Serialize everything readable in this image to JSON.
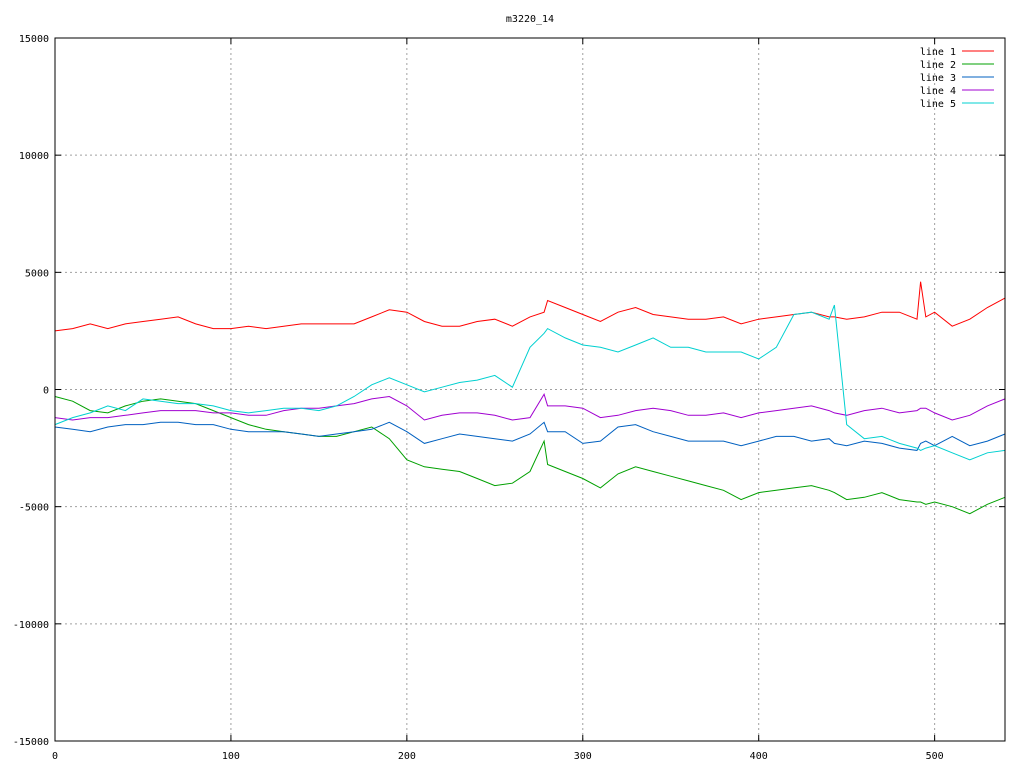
{
  "chart_data": {
    "type": "line",
    "title": "m3220_14",
    "xlabel": "",
    "ylabel": "",
    "xlim": [
      0,
      540
    ],
    "ylim": [
      -15000,
      15000
    ],
    "x_ticks": [
      0,
      100,
      200,
      300,
      400,
      500
    ],
    "y_ticks": [
      -15000,
      -10000,
      -5000,
      0,
      5000,
      10000,
      15000
    ],
    "grid": true,
    "legend_position": "top-right",
    "x": [
      0,
      10,
      20,
      30,
      40,
      50,
      60,
      70,
      80,
      90,
      100,
      110,
      120,
      130,
      140,
      150,
      160,
      170,
      180,
      190,
      200,
      210,
      220,
      230,
      240,
      250,
      260,
      270,
      278,
      280,
      290,
      300,
      310,
      320,
      330,
      340,
      350,
      360,
      370,
      380,
      390,
      400,
      410,
      420,
      430,
      440,
      443,
      450,
      460,
      470,
      480,
      490,
      492,
      495,
      500,
      510,
      520,
      530,
      540
    ],
    "series": [
      {
        "name": "line 1",
        "color": "#ff0000",
        "values": [
          2500,
          2600,
          2800,
          2600,
          2800,
          2900,
          3000,
          3100,
          2800,
          2600,
          2600,
          2700,
          2600,
          2700,
          2800,
          2800,
          2800,
          2800,
          3100,
          3400,
          3300,
          2900,
          2700,
          2700,
          2900,
          3000,
          2700,
          3100,
          3300,
          3800,
          3500,
          3200,
          2900,
          3300,
          3500,
          3200,
          3100,
          3000,
          3000,
          3100,
          2800,
          3000,
          3100,
          3200,
          3300,
          3100,
          3100,
          3000,
          3100,
          3300,
          3300,
          3000,
          4600,
          3100,
          3300,
          2700,
          3000,
          3500,
          3900
        ]
      },
      {
        "name": "line 2",
        "color": "#00a000",
        "values": [
          -300,
          -500,
          -900,
          -1000,
          -700,
          -500,
          -400,
          -500,
          -600,
          -900,
          -1200,
          -1500,
          -1700,
          -1800,
          -1900,
          -2000,
          -2000,
          -1800,
          -1600,
          -2100,
          -3000,
          -3300,
          -3400,
          -3500,
          -3800,
          -4100,
          -4000,
          -3500,
          -2200,
          -3200,
          -3500,
          -3800,
          -4200,
          -3600,
          -3300,
          -3500,
          -3700,
          -3900,
          -4100,
          -4300,
          -4700,
          -4400,
          -4300,
          -4200,
          -4100,
          -4300,
          -4400,
          -4700,
          -4600,
          -4400,
          -4700,
          -4800,
          -4800,
          -4900,
          -4800,
          -5000,
          -5300,
          -4900,
          -4600
        ]
      },
      {
        "name": "line 3",
        "color": "#0060c0",
        "values": [
          -1600,
          -1700,
          -1800,
          -1600,
          -1500,
          -1500,
          -1400,
          -1400,
          -1500,
          -1500,
          -1700,
          -1800,
          -1800,
          -1800,
          -1900,
          -2000,
          -1900,
          -1800,
          -1700,
          -1400,
          -1800,
          -2300,
          -2100,
          -1900,
          -2000,
          -2100,
          -2200,
          -1900,
          -1400,
          -1800,
          -1800,
          -2300,
          -2200,
          -1600,
          -1500,
          -1800,
          -2000,
          -2200,
          -2200,
          -2200,
          -2400,
          -2200,
          -2000,
          -2000,
          -2200,
          -2100,
          -2300,
          -2400,
          -2200,
          -2300,
          -2500,
          -2600,
          -2300,
          -2200,
          -2400,
          -2000,
          -2400,
          -2200,
          -1900
        ]
      },
      {
        "name": "line 4",
        "color": "#a000d0",
        "values": [
          -1200,
          -1300,
          -1200,
          -1200,
          -1100,
          -1000,
          -900,
          -900,
          -900,
          -1000,
          -1000,
          -1100,
          -1100,
          -900,
          -800,
          -800,
          -700,
          -600,
          -400,
          -300,
          -700,
          -1300,
          -1100,
          -1000,
          -1000,
          -1100,
          -1300,
          -1200,
          -200,
          -700,
          -700,
          -800,
          -1200,
          -1100,
          -900,
          -800,
          -900,
          -1100,
          -1100,
          -1000,
          -1200,
          -1000,
          -900,
          -800,
          -700,
          -900,
          -1000,
          -1100,
          -900,
          -800,
          -1000,
          -900,
          -800,
          -800,
          -1000,
          -1300,
          -1100,
          -700,
          -400
        ]
      },
      {
        "name": "line 5",
        "color": "#00d0d0",
        "values": [
          -1500,
          -1200,
          -1000,
          -700,
          -900,
          -400,
          -500,
          -600,
          -600,
          -700,
          -900,
          -1000,
          -900,
          -800,
          -800,
          -900,
          -700,
          -300,
          200,
          500,
          200,
          -100,
          100,
          300,
          400,
          600,
          100,
          1800,
          2400,
          2600,
          2200,
          1900,
          1800,
          1600,
          1900,
          2200,
          1800,
          1800,
          1600,
          1600,
          1600,
          1300,
          1800,
          3200,
          3300,
          3000,
          3600,
          -1500,
          -2100,
          -2000,
          -2300,
          -2500,
          -2600,
          -2500,
          -2400,
          -2700,
          -3000,
          -2700,
          -2600
        ]
      }
    ]
  }
}
